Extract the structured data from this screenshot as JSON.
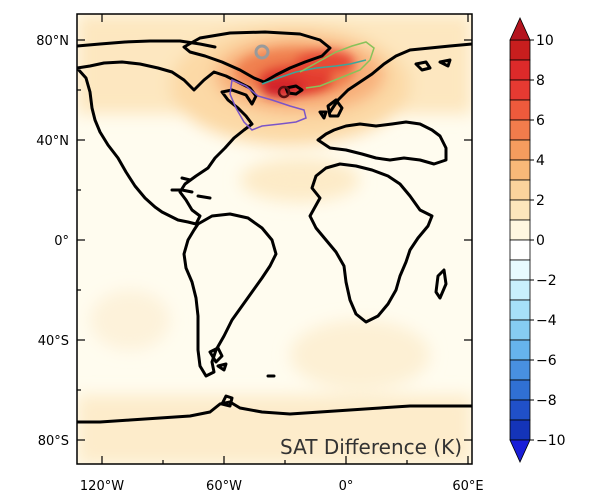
{
  "map": {
    "title": "SAT Difference (K)",
    "lat_ticks": [
      "80°N",
      "40°N",
      "0°",
      "40°S",
      "80°S"
    ],
    "lon_ticks": [
      "120°W",
      "60°W",
      "0°",
      "60°E"
    ],
    "colorbar": {
      "labels": [
        "10",
        "8",
        "6",
        "4",
        "2",
        "0",
        "−2",
        "−4",
        "−6",
        "−8",
        "−10"
      ],
      "levels": [
        10,
        9,
        8,
        7,
        6,
        5,
        4,
        3,
        2,
        1,
        0,
        -1,
        -2,
        -3,
        -4,
        -5,
        -6,
        -7,
        -8,
        -9,
        -10
      ],
      "colors": [
        "#c81e1e",
        "#dc2a2a",
        "#e63a32",
        "#ee5a3c",
        "#f27c4c",
        "#f59c5e",
        "#f8b878",
        "#fbd39c",
        "#fce6bc",
        "#fff7e0",
        "#ffffff",
        "#e8fbff",
        "#c8f0fc",
        "#a6e0f8",
        "#86cdf2",
        "#66b4ec",
        "#4890e0",
        "#3070d4",
        "#2050c8",
        "#1434b8"
      ],
      "top_color": "#b4141e",
      "bottom_color": "#1a1ed8"
    },
    "colors": {
      "coast": "#000000",
      "sea_ice_line_teal": "#3aa79b",
      "sea_ice_line_green": "#88c25a",
      "sea_ice_line_purple": "#7b55c8",
      "marker_gray": "#9a9a9a",
      "marker_dark": "#5a1010"
    }
  }
}
